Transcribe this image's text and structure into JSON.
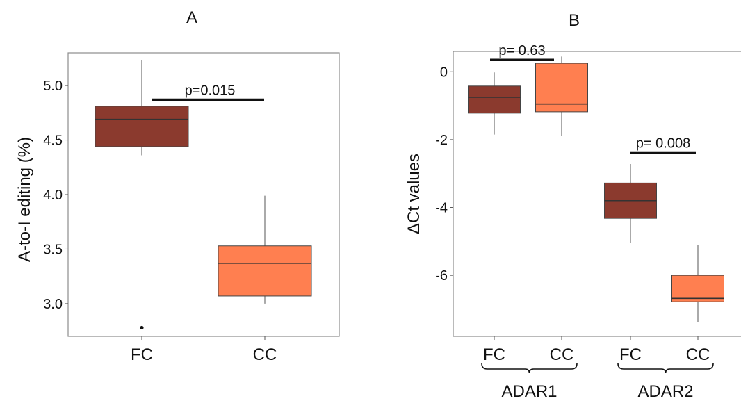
{
  "colors": {
    "fc": "#8b3a2e",
    "cc": "#ff7f50",
    "edge": "#444444",
    "frame": "#8c8c8c",
    "text": "#111111"
  },
  "chart_data": [
    {
      "type": "box",
      "panel_label": "A",
      "xlabel": "",
      "ylabel": "A-to-I editing (%)",
      "ylim": [
        2.7,
        5.3
      ],
      "yticks": [
        3.0,
        3.5,
        4.0,
        4.5,
        5.0
      ],
      "ytick_labels": [
        "3.0",
        "3.5",
        "4.0",
        "4.5",
        "5.0"
      ],
      "categories": [
        "FC",
        "CC"
      ],
      "boxes": [
        {
          "category": "FC",
          "whisker_low": 4.36,
          "q1": 4.44,
          "median": 4.69,
          "q3": 4.81,
          "whisker_high": 5.23,
          "outliers": [
            2.78
          ],
          "color": "fc"
        },
        {
          "category": "CC",
          "whisker_low": 3.0,
          "q1": 3.07,
          "median": 3.37,
          "q3": 3.53,
          "whisker_high": 3.99,
          "outliers": [],
          "color": "cc"
        }
      ],
      "annotations": [
        {
          "text": "p=0.015",
          "from": 0,
          "to": 1,
          "y": 4.87
        }
      ],
      "grid": false
    },
    {
      "type": "box",
      "panel_label": "B",
      "xlabel": "",
      "ylabel": "ΔCt values",
      "ylim": [
        -7.8,
        0.6
      ],
      "yticks": [
        -6,
        -4,
        -2,
        0
      ],
      "ytick_labels": [
        "-6",
        "-4",
        "-2",
        "0"
      ],
      "categories": [
        "FC",
        "CC",
        "FC",
        "CC"
      ],
      "groups": [
        {
          "label": "ADAR1",
          "from": 0,
          "to": 1
        },
        {
          "label": "ADAR2",
          "from": 2,
          "to": 3
        }
      ],
      "boxes": [
        {
          "category": "FC",
          "group": "ADAR1",
          "whisker_low": -1.85,
          "q1": -1.22,
          "median": -0.75,
          "q3": -0.42,
          "whisker_high": -0.02,
          "outliers": [],
          "color": "fc"
        },
        {
          "category": "CC",
          "group": "ADAR1",
          "whisker_low": -1.9,
          "q1": -1.18,
          "median": -0.95,
          "q3": 0.25,
          "whisker_high": 0.45,
          "outliers": [],
          "color": "cc"
        },
        {
          "category": "FC",
          "group": "ADAR2",
          "whisker_low": -5.05,
          "q1": -4.32,
          "median": -3.8,
          "q3": -3.28,
          "whisker_high": -2.72,
          "outliers": [],
          "color": "fc"
        },
        {
          "category": "CC",
          "group": "ADAR2",
          "whisker_low": -7.38,
          "q1": -6.78,
          "median": -6.68,
          "q3": -6.0,
          "whisker_high": -5.1,
          "outliers": [],
          "color": "cc"
        }
      ],
      "annotations": [
        {
          "text": "p= 0.63",
          "from": 0,
          "to": 1,
          "y": 0.35
        },
        {
          "text": "p= 0.008",
          "from": 2,
          "to": 3,
          "y": -2.38
        }
      ],
      "grid": false
    }
  ]
}
